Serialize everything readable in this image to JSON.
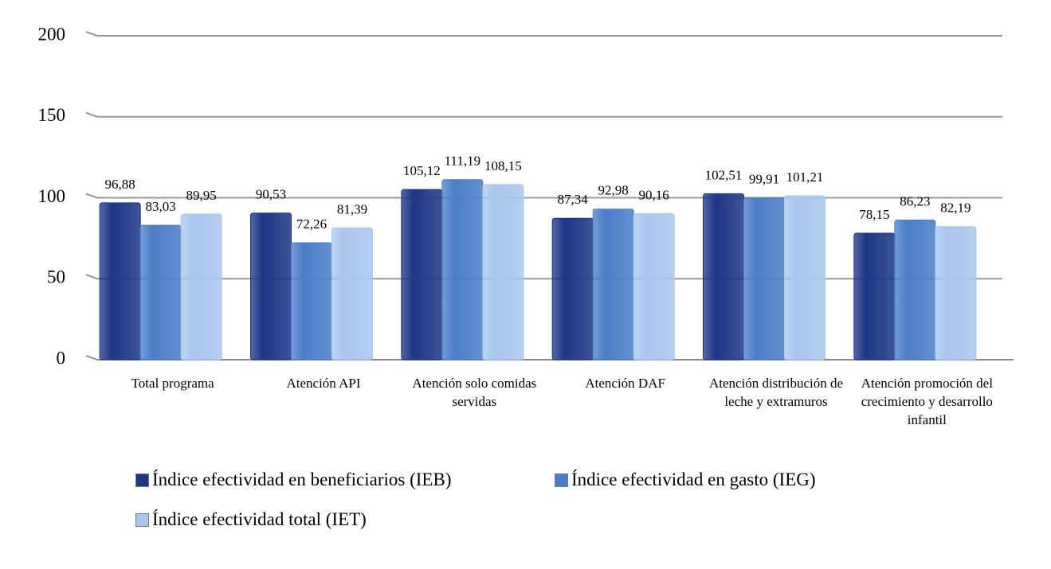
{
  "chart_data": {
    "type": "bar",
    "categories": [
      "Total programa",
      "Atención API",
      "Atención solo comidas servidas",
      "Atención DAF",
      "Atención distribución de leche y extramuros",
      "Atención promoción del crecimiento y desarrollo infantil"
    ],
    "series": [
      {
        "name": "Índice efectividad en beneficiarios (IEB)",
        "color": "#1c3585",
        "values": [
          96.88,
          90.53,
          105.12,
          87.34,
          102.51,
          78.15
        ],
        "value_labels": [
          "96,88",
          "90,53",
          "105,12",
          "87,34",
          "102,51",
          "78,15"
        ]
      },
      {
        "name": "Índice efectividad en gasto (IEG)",
        "color": "#4a7dc8",
        "values": [
          83.03,
          72.26,
          111.19,
          92.98,
          99.91,
          86.23
        ],
        "value_labels": [
          "83,03",
          "72,26",
          "111,19",
          "92,98",
          "99,91",
          "86,23"
        ]
      },
      {
        "name": "Índice efectividad total (IET)",
        "color": "#aac6ee",
        "values": [
          89.95,
          81.39,
          108.15,
          90.16,
          101.21,
          82.19
        ],
        "value_labels": [
          "89,95",
          "81,39",
          "108,15",
          "90,16",
          "101,21",
          "82,19"
        ]
      }
    ],
    "ylim": [
      0,
      200
    ],
    "yticks": [
      0,
      50,
      100,
      150,
      200
    ],
    "grid": true,
    "legend": "bottom"
  }
}
